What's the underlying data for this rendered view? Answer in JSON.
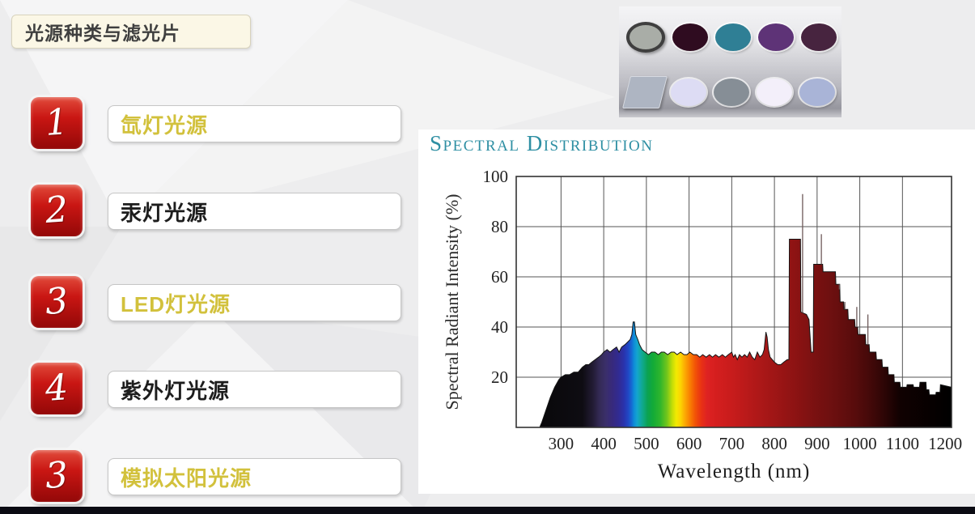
{
  "slide": {
    "title": "光源种类与滤光片",
    "items": [
      {
        "num": "1",
        "label": "氙灯光源",
        "color": "yellow"
      },
      {
        "num": "2",
        "label": "汞灯光源",
        "color": "dark"
      },
      {
        "num": "3",
        "label": "LED灯光源",
        "color": "yellow"
      },
      {
        "num": "4",
        "label": "紫外灯光源",
        "color": "dark"
      },
      {
        "num": "3",
        "label": "模拟太阳光源",
        "color": "yellow"
      }
    ],
    "colors": {
      "badge_red_top": "#e14b3b",
      "badge_red_mid": "#c91613",
      "badge_red_bottom": "#930808",
      "label_yellow": "#d2c13c",
      "label_dark": "#1d1d1d",
      "footer_bar": "#0b0b13"
    }
  },
  "filters_panel": {
    "row1": [
      {
        "shape": "ring",
        "fill": "#a9ada7",
        "ring": "#3f3f3f"
      },
      {
        "shape": "circle",
        "fill": "#2f0c20"
      },
      {
        "shape": "circle",
        "fill": "#2f7f95"
      },
      {
        "shape": "circle",
        "fill": "#5e3377"
      },
      {
        "shape": "circle",
        "fill": "#47243f"
      }
    ],
    "row2": [
      {
        "shape": "square",
        "fill": "#aeb5c2"
      },
      {
        "shape": "circle",
        "fill": "#dddcf4"
      },
      {
        "shape": "circle",
        "fill": "#868e96"
      },
      {
        "shape": "circle",
        "fill": "#f3effa"
      },
      {
        "shape": "circle",
        "fill": "#a9b4d7"
      }
    ]
  },
  "chart_data": {
    "type": "area",
    "title": "Spectral Distribution",
    "title_color": "#2e8fa3",
    "xlabel": "Wavelength (nm)",
    "ylabel": "Spectral Radiant Intensity (%)",
    "xlim": [
      195,
      1215
    ],
    "ylim": [
      0,
      100
    ],
    "x_ticks": [
      300,
      400,
      500,
      600,
      700,
      800,
      900,
      1000,
      1100,
      1200
    ],
    "y_ticks": [
      20,
      40,
      60,
      80,
      100
    ],
    "grid": true,
    "series": [
      {
        "name": "xenon-lamp-spectrum",
        "points": [
          [
            250,
            0
          ],
          [
            255,
            2
          ],
          [
            265,
            7
          ],
          [
            275,
            12
          ],
          [
            285,
            16
          ],
          [
            295,
            19
          ],
          [
            300,
            20
          ],
          [
            310,
            21
          ],
          [
            320,
            21
          ],
          [
            330,
            22
          ],
          [
            340,
            22
          ],
          [
            350,
            24
          ],
          [
            358,
            25
          ],
          [
            365,
            25
          ],
          [
            372,
            26
          ],
          [
            380,
            27
          ],
          [
            388,
            28
          ],
          [
            395,
            29
          ],
          [
            400,
            30
          ],
          [
            408,
            31
          ],
          [
            415,
            30
          ],
          [
            422,
            31
          ],
          [
            430,
            32
          ],
          [
            436,
            30
          ],
          [
            442,
            32
          ],
          [
            450,
            33
          ],
          [
            456,
            34
          ],
          [
            462,
            35
          ],
          [
            466,
            37
          ],
          [
            469,
            42
          ],
          [
            472,
            42
          ],
          [
            475,
            37
          ],
          [
            480,
            35
          ],
          [
            484,
            33
          ],
          [
            490,
            31
          ],
          [
            497,
            30
          ],
          [
            505,
            29
          ],
          [
            512,
            30
          ],
          [
            520,
            30
          ],
          [
            528,
            29
          ],
          [
            535,
            30
          ],
          [
            542,
            30
          ],
          [
            550,
            29
          ],
          [
            558,
            30
          ],
          [
            565,
            30
          ],
          [
            572,
            29
          ],
          [
            580,
            30
          ],
          [
            588,
            29
          ],
          [
            595,
            29
          ],
          [
            602,
            30
          ],
          [
            610,
            29
          ],
          [
            618,
            29
          ],
          [
            625,
            28
          ],
          [
            632,
            29
          ],
          [
            640,
            28
          ],
          [
            648,
            29
          ],
          [
            655,
            28
          ],
          [
            662,
            29
          ],
          [
            670,
            28
          ],
          [
            678,
            29
          ],
          [
            685,
            28
          ],
          [
            692,
            29
          ],
          [
            700,
            30
          ],
          [
            704,
            28
          ],
          [
            708,
            29
          ],
          [
            713,
            27
          ],
          [
            718,
            29
          ],
          [
            724,
            28
          ],
          [
            730,
            29
          ],
          [
            736,
            28
          ],
          [
            742,
            30
          ],
          [
            748,
            28
          ],
          [
            754,
            27
          ],
          [
            760,
            30
          ],
          [
            766,
            28
          ],
          [
            772,
            29
          ],
          [
            776,
            31
          ],
          [
            780,
            38
          ],
          [
            783,
            36
          ],
          [
            786,
            31
          ],
          [
            790,
            28
          ],
          [
            795,
            27
          ],
          [
            800,
            26
          ],
          [
            808,
            25
          ],
          [
            815,
            25
          ],
          [
            822,
            26
          ],
          [
            830,
            27
          ],
          [
            834,
            27
          ],
          [
            835,
            75
          ],
          [
            861,
            75
          ],
          [
            862,
            46
          ],
          [
            875,
            45
          ],
          [
            881,
            43
          ],
          [
            886,
            30
          ],
          [
            891,
            30
          ],
          [
            892,
            65
          ],
          [
            913,
            65
          ],
          [
            914,
            62
          ],
          [
            943,
            62
          ],
          [
            944,
            57
          ],
          [
            953,
            57
          ],
          [
            954,
            50
          ],
          [
            962,
            50
          ],
          [
            963,
            47
          ],
          [
            972,
            47
          ],
          [
            973,
            43
          ],
          [
            988,
            43
          ],
          [
            989,
            40
          ],
          [
            995,
            40
          ],
          [
            996,
            37
          ],
          [
            1013,
            37
          ],
          [
            1014,
            33
          ],
          [
            1022,
            33
          ],
          [
            1023,
            30
          ],
          [
            1038,
            30
          ],
          [
            1039,
            27
          ],
          [
            1052,
            27
          ],
          [
            1053,
            24
          ],
          [
            1066,
            24
          ],
          [
            1067,
            21
          ],
          [
            1080,
            21
          ],
          [
            1081,
            18
          ],
          [
            1094,
            18
          ],
          [
            1095,
            16
          ],
          [
            1110,
            16
          ],
          [
            1111,
            17
          ],
          [
            1125,
            17
          ],
          [
            1126,
            16
          ],
          [
            1140,
            16
          ],
          [
            1141,
            18
          ],
          [
            1155,
            18
          ],
          [
            1156,
            15
          ],
          [
            1162,
            15
          ],
          [
            1163,
            13
          ],
          [
            1178,
            13
          ],
          [
            1179,
            14
          ],
          [
            1188,
            14
          ],
          [
            1189,
            17
          ],
          [
            1215,
            16
          ]
        ]
      }
    ],
    "spikes": [
      [
        866,
        93
      ],
      [
        910,
        77
      ],
      [
        952,
        55
      ],
      [
        965,
        50
      ],
      [
        993,
        48
      ],
      [
        1019,
        45
      ]
    ],
    "spectrum_gradient": [
      [
        195,
        "#060606"
      ],
      [
        350,
        "#0e0c12"
      ],
      [
        375,
        "#231c35"
      ],
      [
        390,
        "#342a55"
      ],
      [
        405,
        "#3a2f6a"
      ],
      [
        420,
        "#37297c"
      ],
      [
        435,
        "#312b92"
      ],
      [
        447,
        "#2a32ac"
      ],
      [
        457,
        "#2146c4"
      ],
      [
        465,
        "#1668d2"
      ],
      [
        471,
        "#0e8cd8"
      ],
      [
        478,
        "#14a4cf"
      ],
      [
        486,
        "#12a8a6"
      ],
      [
        494,
        "#0fa87e"
      ],
      [
        503,
        "#0ca251"
      ],
      [
        515,
        "#12aa38"
      ],
      [
        532,
        "#2eb52c"
      ],
      [
        548,
        "#72c51c"
      ],
      [
        560,
        "#c0dc08"
      ],
      [
        570,
        "#f2ea02"
      ],
      [
        580,
        "#fcd402"
      ],
      [
        590,
        "#fcab03"
      ],
      [
        602,
        "#f97f02"
      ],
      [
        615,
        "#f25207"
      ],
      [
        628,
        "#e93314"
      ],
      [
        642,
        "#de2222"
      ],
      [
        665,
        "#d41e1e"
      ],
      [
        700,
        "#c81c1c"
      ],
      [
        745,
        "#b51919"
      ],
      [
        795,
        "#a11616"
      ],
      [
        845,
        "#8e1313"
      ],
      [
        895,
        "#7a1111"
      ],
      [
        945,
        "#690f0f"
      ],
      [
        990,
        "#570c0c"
      ],
      [
        1025,
        "#430909"
      ],
      [
        1060,
        "#2b0505"
      ],
      [
        1095,
        "#100101"
      ],
      [
        1215,
        "#000000"
      ]
    ]
  }
}
